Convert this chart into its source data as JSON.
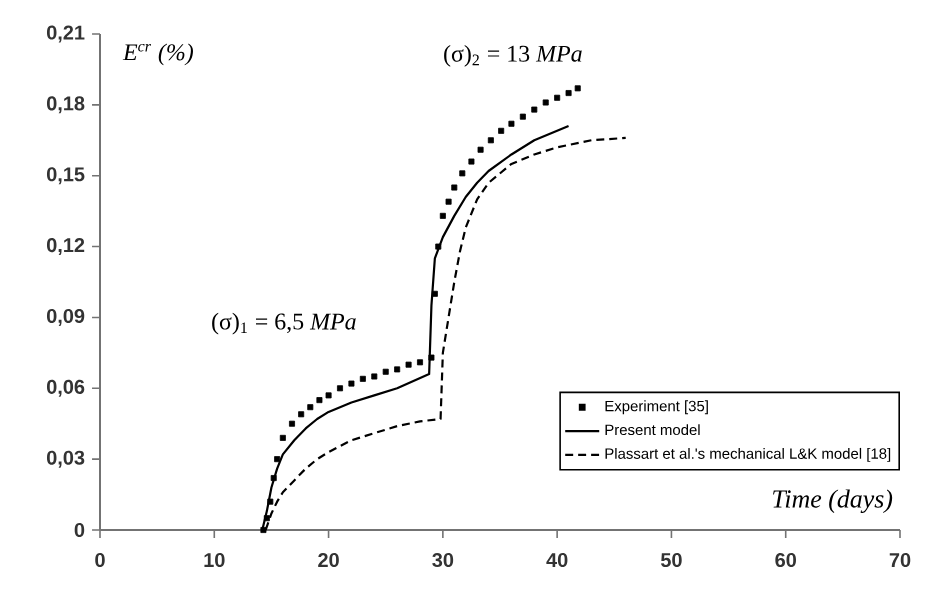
{
  "chart_data": {
    "type": "line",
    "xlabel": "Time (days)",
    "ylabel": "E$^{cr}$ (%)",
    "xlim": [
      0,
      70
    ],
    "ylim": [
      0,
      0.21
    ],
    "xticks": [
      0,
      10,
      20,
      30,
      40,
      50,
      60,
      70
    ],
    "yticks": [
      0,
      {
        "value": 0.03,
        "label": "0,03"
      },
      {
        "value": 0.06,
        "label": "0,06"
      },
      {
        "value": 0.09,
        "label": "0,09"
      },
      {
        "value": 0.12,
        "label": "0,12"
      },
      {
        "value": 0.15,
        "label": "0,15"
      },
      {
        "value": 0.18,
        "label": "0,18"
      },
      {
        "value": 0.21,
        "label": "0,21"
      }
    ],
    "legend": "right",
    "grid": false,
    "series": [
      {
        "name": "Experiment [35]",
        "type": "scatter",
        "marker": "square",
        "color": "#000000",
        "x": [
          14.3,
          14.6,
          14.9,
          15.2,
          15.5,
          16,
          16.8,
          17.6,
          18.4,
          19.2,
          20,
          21,
          22,
          23,
          24,
          25,
          26,
          27,
          28,
          29,
          29.3,
          29.6,
          30,
          30.5,
          31,
          31.7,
          32.5,
          33.3,
          34.2,
          35.1,
          36,
          37,
          38,
          39,
          40,
          41,
          41.8
        ],
        "values": [
          0,
          0.005,
          0.012,
          0.022,
          0.03,
          0.039,
          0.045,
          0.049,
          0.052,
          0.055,
          0.057,
          0.06,
          0.062,
          0.064,
          0.065,
          0.067,
          0.068,
          0.07,
          0.071,
          0.073,
          0.1,
          0.12,
          0.133,
          0.139,
          0.145,
          0.151,
          0.156,
          0.161,
          0.165,
          0.169,
          0.172,
          0.175,
          0.178,
          0.181,
          0.183,
          0.185,
          0.187
        ]
      },
      {
        "name": "Present model",
        "line_style": "solid",
        "color": "#000000",
        "x": [
          14.2,
          14.6,
          15,
          15.5,
          16,
          17,
          18,
          19,
          20,
          22,
          24,
          26,
          28.8,
          29,
          29.3,
          30,
          31,
          32,
          33,
          34,
          36,
          38,
          41
        ],
        "values": [
          0,
          0.008,
          0.018,
          0.026,
          0.032,
          0.038,
          0.043,
          0.047,
          0.05,
          0.054,
          0.057,
          0.06,
          0.066,
          0.095,
          0.115,
          0.124,
          0.133,
          0.141,
          0.147,
          0.152,
          0.159,
          0.165,
          0.171
        ]
      },
      {
        "name": "Plassart et al.'s mechanical L&K model [18]",
        "line_style": "dashed",
        "color": "#000000",
        "x": [
          14.5,
          15,
          15.5,
          16,
          17,
          18,
          19,
          20,
          22,
          24,
          26,
          28,
          29.8,
          30,
          30.5,
          31,
          31.5,
          32,
          33,
          34,
          36,
          38,
          40,
          43,
          46
        ],
        "values": [
          0,
          0.007,
          0.012,
          0.016,
          0.021,
          0.026,
          0.03,
          0.033,
          0.038,
          0.041,
          0.044,
          0.046,
          0.047,
          0.075,
          0.09,
          0.105,
          0.118,
          0.128,
          0.14,
          0.147,
          0.155,
          0.159,
          0.162,
          0.165,
          0.166
        ]
      }
    ],
    "annotations": [
      "(σ)$_{1}$ = 6,5 *MPa*",
      "(σ)$_{2}$ = 13 *MPa*"
    ]
  }
}
